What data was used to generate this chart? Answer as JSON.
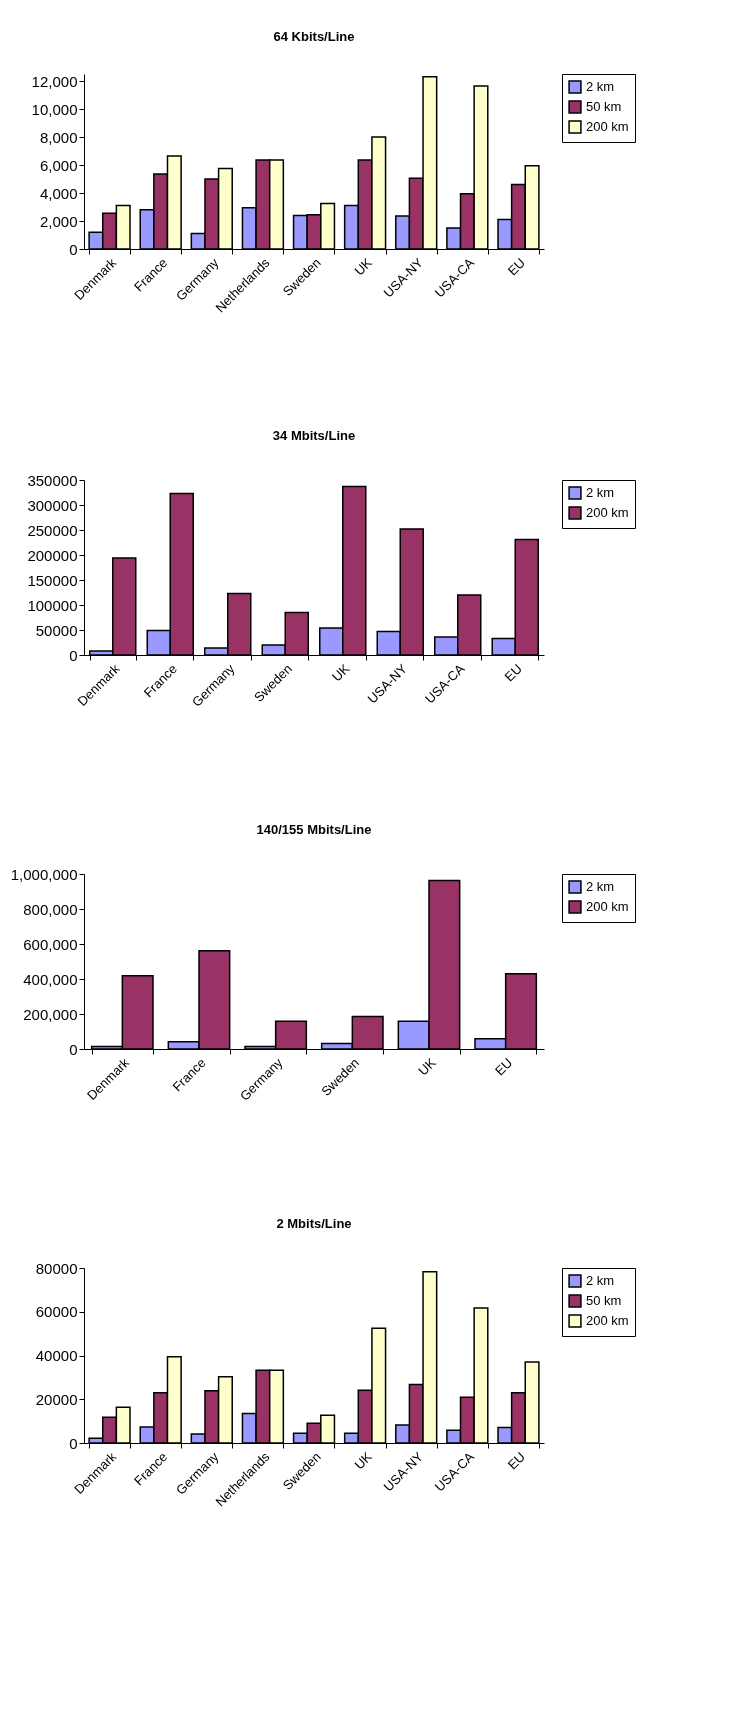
{
  "chart_data": [
    {
      "type": "bar",
      "title": "64 Kbits/Line",
      "categories": [
        "Denmark",
        "France",
        "Germany",
        "Netherlands",
        "Sweden",
        "UK",
        "USA-NY",
        "USA-CA",
        "EU"
      ],
      "series": [
        {
          "name": "2 km",
          "color": "#9999ff",
          "values": [
            1200,
            2800,
            1100,
            2950,
            2400,
            3100,
            2350,
            1500,
            2100
          ]
        },
        {
          "name": "50 km",
          "color": "#993366",
          "values": [
            2550,
            5350,
            5000,
            6350,
            2450,
            6350,
            5050,
            3950,
            4600
          ]
        },
        {
          "name": "200 km",
          "color": "#ffffcc",
          "values": [
            3100,
            6650,
            5750,
            6350,
            3250,
            8000,
            12300,
            11650,
            5950
          ]
        }
      ],
      "ylim": [
        0,
        12500
      ],
      "yticks": [
        0,
        {
          "value": 2000,
          "label": "2,000"
        },
        {
          "value": 4000,
          "label": "4,000"
        },
        {
          "value": 6000,
          "label": "6,000"
        },
        {
          "value": 8000,
          "label": "8,000"
        },
        {
          "value": 10000,
          "label": "10,000"
        },
        {
          "value": 12000,
          "label": "12,000"
        }
      ],
      "grid": false,
      "legend": "right"
    },
    {
      "type": "bar",
      "title": "34 Mbits/Line",
      "categories": [
        "Denmark",
        "France",
        "Germany",
        "Sweden",
        "UK",
        "USA-NY",
        "USA-CA",
        "EU"
      ],
      "series": [
        {
          "name": "2 km",
          "color": "#9999ff",
          "values": [
            8000,
            49000,
            14000,
            20000,
            54000,
            47000,
            36000,
            33000
          ]
        },
        {
          "name": "200 km",
          "color": "#993366",
          "values": [
            194000,
            323000,
            123000,
            85000,
            337000,
            252000,
            120000,
            231000
          ]
        }
      ],
      "ylim": [
        0,
        350000
      ],
      "yticks": [
        0,
        50000,
        100000,
        150000,
        200000,
        250000,
        300000,
        350000
      ],
      "grid": false,
      "legend": "right"
    },
    {
      "type": "bar",
      "title": "140/155 Mbits/Line",
      "categories": [
        "Denmark",
        "France",
        "Germany",
        "Sweden",
        "UK",
        "EU"
      ],
      "series": [
        {
          "name": "2 km",
          "color": "#9999ff",
          "values": [
            15000,
            42000,
            15000,
            32000,
            159000,
            59000
          ]
        },
        {
          "name": "200 km",
          "color": "#993366",
          "values": [
            418000,
            562000,
            159000,
            186000,
            963000,
            430000
          ]
        }
      ],
      "ylim": [
        0,
        1000000
      ],
      "yticks": [
        0,
        {
          "value": 200000,
          "label": "200,000"
        },
        {
          "value": 400000,
          "label": "400,000"
        },
        {
          "value": 600000,
          "label": "600,000"
        },
        {
          "value": 800000,
          "label": "800,000"
        },
        {
          "value": 1000000,
          "label": "1,000,000"
        }
      ],
      "grid": false,
      "legend": "right"
    },
    {
      "type": "bar",
      "title": "2 Mbits/Line",
      "categories": [
        "Denmark",
        "France",
        "Germany",
        "Netherlands",
        "Sweden",
        "UK",
        "USA-NY",
        "USA-CA",
        "EU"
      ],
      "series": [
        {
          "name": "2 km",
          "color": "#9999ff",
          "values": [
            2200,
            7300,
            4100,
            13500,
            4500,
            4500,
            8200,
            5800,
            7100
          ]
        },
        {
          "name": "50 km",
          "color": "#993366",
          "values": [
            11800,
            23000,
            23900,
            33300,
            9000,
            24100,
            26700,
            20900,
            23000
          ]
        },
        {
          "name": "200 km",
          "color": "#ffffcc",
          "values": [
            16300,
            39400,
            30300,
            33300,
            12700,
            52500,
            78300,
            61700,
            37000
          ]
        }
      ],
      "ylim": [
        0,
        80000
      ],
      "yticks": [
        0,
        20000,
        40000,
        60000,
        80000
      ],
      "grid": false,
      "legend": "right"
    }
  ]
}
